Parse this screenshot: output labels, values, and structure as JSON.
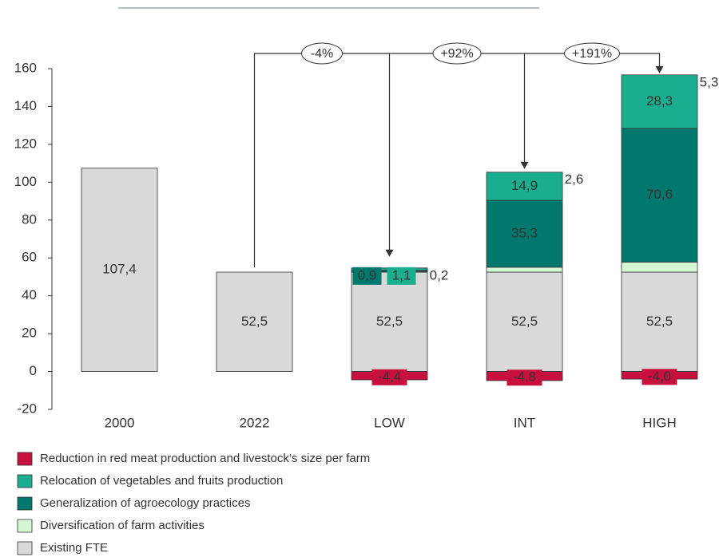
{
  "chart_data": {
    "type": "stacked_bar",
    "categories": [
      "2000",
      "2022",
      "LOW",
      "INT",
      "HIGH"
    ],
    "series": [
      {
        "name": "Reduction in red meat production and livestock’s size per farm",
        "color": "#c8103e",
        "values": [
          null,
          null,
          -4.4,
          -4.8,
          -4.0
        ],
        "value_labels": [
          null,
          null,
          "-4,4",
          "-4,8",
          "-4,0"
        ]
      },
      {
        "name": "Relocation of vegetables and fruits production",
        "color": "#1aae8f",
        "values": [
          null,
          null,
          1.1,
          14.9,
          28.3
        ],
        "value_labels": [
          null,
          null,
          "1,1",
          "14,9",
          "28,3"
        ]
      },
      {
        "name": "Generalization of agroecology practices",
        "color": "#00786e",
        "values": [
          null,
          null,
          0.9,
          35.3,
          70.6
        ],
        "value_labels": [
          null,
          null,
          "0,9",
          "35,3",
          "70,6"
        ]
      },
      {
        "name": "Diversification of farm activities",
        "color": "#d4f7d4",
        "values": [
          null,
          null,
          0.2,
          2.6,
          5.3
        ],
        "value_labels": [
          null,
          null,
          "0,2",
          "2,6",
          "5,3"
        ]
      },
      {
        "name": "Existing FTE",
        "color": "#d9d9d9",
        "values": [
          107.4,
          52.5,
          52.5,
          52.5,
          52.5
        ],
        "value_labels": [
          "107,4",
          "52,5",
          "52,5",
          "52,5",
          "52,5"
        ]
      }
    ],
    "annotations": [
      "-4%",
      "+92%",
      "+191%"
    ],
    "ylim": [
      -20,
      160
    ],
    "yticks": [
      -20,
      0,
      20,
      40,
      60,
      80,
      100,
      120,
      140,
      160
    ],
    "grid": false,
    "legend": "bottom"
  }
}
